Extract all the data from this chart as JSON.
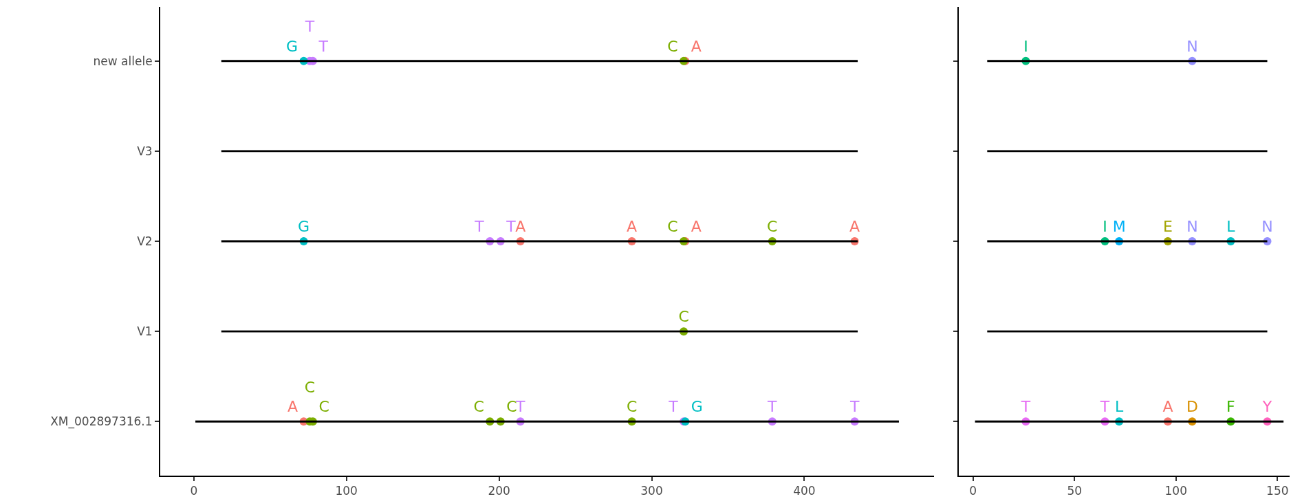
{
  "chart_data": [
    {
      "type": "scatter",
      "orientation": "horizontal",
      "marker": "circle",
      "categories": [
        "new allele",
        "V3",
        "V2",
        "V1",
        "XM_002897316.1"
      ],
      "xlim": [
        -22,
        485
      ],
      "xticks": [
        0,
        100,
        200,
        300,
        400
      ],
      "series": [
        {
          "type": "bar",
          "color": "#000000",
          "base": [
            18,
            18,
            18,
            18,
            1
          ],
          "values": [
            417,
            417,
            417,
            417,
            461
          ]
        },
        {
          "color": "#F8766D",
          "values": [
            322,
            null,
            214,
            null,
            72
          ],
          "value_labels": [
            "A",
            null,
            "A",
            null,
            "A"
          ]
        },
        {
          "color": "#F8766D",
          "values": [
            null,
            null,
            287,
            null,
            null
          ],
          "value_labels": [
            null,
            null,
            "A",
            null,
            null
          ]
        },
        {
          "color": "#F8766D",
          "values": [
            null,
            null,
            322,
            null,
            null
          ],
          "value_labels": [
            null,
            null,
            "A",
            null,
            null
          ]
        },
        {
          "color": "#F8766D",
          "values": [
            null,
            null,
            433,
            null,
            null
          ],
          "value_labels": [
            null,
            null,
            "A",
            null,
            null
          ]
        },
        {
          "color": "#7CAE00",
          "values": [
            321,
            null,
            321,
            321,
            76
          ],
          "value_labels": [
            "C",
            null,
            "C",
            "C",
            "C"
          ]
        },
        {
          "color": "#7CAE00",
          "values": [
            null,
            null,
            379,
            null,
            78
          ],
          "value_labels": [
            null,
            null,
            "C",
            null,
            "C"
          ]
        },
        {
          "color": "#7CAE00",
          "values": [
            null,
            null,
            null,
            null,
            194
          ],
          "value_labels": [
            null,
            null,
            null,
            null,
            "C"
          ]
        },
        {
          "color": "#7CAE00",
          "values": [
            null,
            null,
            null,
            null,
            201
          ],
          "value_labels": [
            null,
            null,
            null,
            null,
            "C"
          ]
        },
        {
          "color": "#7CAE00",
          "values": [
            null,
            null,
            null,
            null,
            287
          ],
          "value_labels": [
            null,
            null,
            null,
            null,
            "C"
          ]
        },
        {
          "color": "#C77CFF",
          "values": [
            76,
            null,
            194,
            null,
            214
          ],
          "value_labels": [
            "T",
            null,
            "T",
            null,
            "T"
          ]
        },
        {
          "color": "#C77CFF",
          "values": [
            78,
            null,
            201,
            null,
            321
          ],
          "value_labels": [
            "T",
            null,
            "T",
            null,
            "T"
          ]
        },
        {
          "color": "#C77CFF",
          "values": [
            null,
            null,
            null,
            null,
            379
          ],
          "value_labels": [
            null,
            null,
            null,
            null,
            "T"
          ]
        },
        {
          "color": "#C77CFF",
          "values": [
            null,
            null,
            null,
            null,
            433
          ],
          "value_labels": [
            null,
            null,
            null,
            null,
            "T"
          ]
        },
        {
          "color": "#00BFC4",
          "values": [
            72,
            null,
            72,
            null,
            322
          ],
          "value_labels": [
            "G",
            null,
            "G",
            null,
            "G"
          ]
        }
      ]
    },
    {
      "type": "scatter",
      "orientation": "horizontal",
      "marker": "circle",
      "tick_labels": "x",
      "xlim": [
        -7,
        156
      ],
      "xticks": [
        0,
        50,
        100,
        150
      ],
      "series": [
        {
          "type": "bar",
          "color": "#000000",
          "base": [
            7,
            7,
            7,
            7,
            1
          ],
          "values": [
            138,
            138,
            138,
            138,
            152
          ]
        },
        {
          "color": "#F8766D",
          "values": [
            null,
            null,
            null,
            null,
            96
          ],
          "value_labels": [
            null,
            null,
            null,
            null,
            "A"
          ]
        },
        {
          "color": "#D89000",
          "values": [
            null,
            null,
            null,
            null,
            108
          ],
          "value_labels": [
            null,
            null,
            null,
            null,
            "D"
          ]
        },
        {
          "color": "#A3A500",
          "values": [
            null,
            null,
            96,
            null,
            null
          ],
          "value_labels": [
            null,
            null,
            "E",
            null,
            null
          ]
        },
        {
          "color": "#39B600",
          "values": [
            null,
            null,
            null,
            null,
            127
          ],
          "value_labels": [
            null,
            null,
            null,
            null,
            "F"
          ]
        },
        {
          "color": "#00BF7D",
          "values": [
            26,
            null,
            65,
            null,
            null
          ],
          "value_labels": [
            "I",
            null,
            "I",
            null,
            null
          ]
        },
        {
          "color": "#00BFC4",
          "values": [
            null,
            null,
            127,
            null,
            72
          ],
          "value_labels": [
            null,
            null,
            "L",
            null,
            "L"
          ]
        },
        {
          "color": "#00B0F6",
          "values": [
            null,
            null,
            72,
            null,
            null
          ],
          "value_labels": [
            null,
            null,
            "M",
            null,
            null
          ]
        },
        {
          "color": "#9590FF",
          "values": [
            108,
            null,
            108,
            null,
            null
          ],
          "value_labels": [
            "N",
            null,
            "N",
            null,
            null
          ]
        },
        {
          "color": "#9590FF",
          "values": [
            null,
            null,
            145,
            null,
            null
          ],
          "value_labels": [
            null,
            null,
            "N",
            null,
            null
          ]
        },
        {
          "color": "#E76BF3",
          "values": [
            null,
            null,
            null,
            null,
            26
          ],
          "value_labels": [
            null,
            null,
            null,
            null,
            "T"
          ]
        },
        {
          "color": "#E76BF3",
          "values": [
            null,
            null,
            null,
            null,
            65
          ],
          "value_labels": [
            null,
            null,
            null,
            null,
            "T"
          ]
        },
        {
          "color": "#FF62BC",
          "values": [
            null,
            null,
            null,
            null,
            145
          ],
          "value_labels": [
            null,
            null,
            null,
            null,
            "Y"
          ]
        }
      ]
    }
  ]
}
